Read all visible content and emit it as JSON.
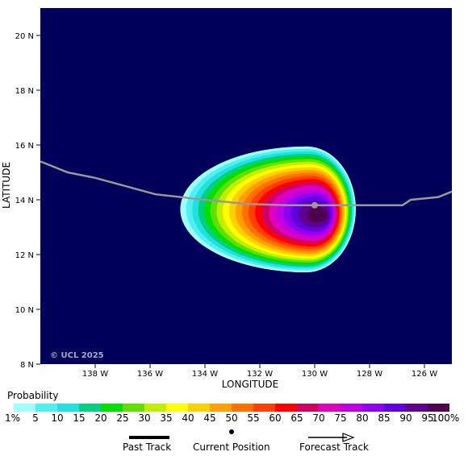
{
  "map": {
    "copyright": "© UCL 2025",
    "x_axis_title": "LONGITUDE",
    "y_axis_title": "LATITUDE",
    "lat_range": [
      8,
      21
    ],
    "lon_range": [
      -140,
      -125
    ],
    "lat_ticks": [
      {
        "value": 20,
        "label": "20 N"
      },
      {
        "value": 18,
        "label": "18 N"
      },
      {
        "value": 16,
        "label": "16 N"
      },
      {
        "value": 14,
        "label": "14 N"
      },
      {
        "value": 12,
        "label": "12 N"
      },
      {
        "value": 10,
        "label": "10 N"
      },
      {
        "value": 8,
        "label": "8 N"
      }
    ],
    "lon_ticks": [
      {
        "value": -138,
        "label": "138 W"
      },
      {
        "value": -136,
        "label": "136 W"
      },
      {
        "value": -134,
        "label": "134 W"
      },
      {
        "value": -132,
        "label": "132 W"
      },
      {
        "value": -130,
        "label": "130 W"
      },
      {
        "value": -128,
        "label": "128 W"
      },
      {
        "value": -126,
        "label": "126 W"
      }
    ],
    "background_color": "#00005a",
    "track_color": "#999999",
    "track": [
      {
        "lon": -125,
        "lat": 14.3
      },
      {
        "lon": -125.5,
        "lat": 14.1
      },
      {
        "lon": -126.5,
        "lat": 14.0
      },
      {
        "lon": -126.8,
        "lat": 13.8
      },
      {
        "lon": -128.0,
        "lat": 13.8
      },
      {
        "lon": -129.0,
        "lat": 13.8
      },
      {
        "lon": -130.0,
        "lat": 13.8
      },
      {
        "lon": -131.0,
        "lat": 13.8
      },
      {
        "lon": -132.5,
        "lat": 13.85
      },
      {
        "lon": -134.0,
        "lat": 14.0
      },
      {
        "lon": -135.8,
        "lat": 14.2
      },
      {
        "lon": -138.0,
        "lat": 14.8
      },
      {
        "lon": -139.0,
        "lat": 15.0
      },
      {
        "lon": -140.0,
        "lat": 15.4
      }
    ],
    "current_position": {
      "lon": -130,
      "lat": 13.8
    },
    "probability_field": {
      "center": {
        "lon": -130.3,
        "lat": 13.65
      },
      "east_extent_deg": 1.8,
      "west_extent_deg": 4.6,
      "lat_extent_deg": 2.3,
      "peak_percent": 95
    }
  },
  "legend": {
    "title": "Probability",
    "colors": [
      "#a0ffff",
      "#50f0f0",
      "#20e0e0",
      "#00d080",
      "#00e000",
      "#60e000",
      "#c0f000",
      "#ffff00",
      "#ffd000",
      "#ffa000",
      "#ff7000",
      "#ff4000",
      "#ff0000",
      "#d00060",
      "#e000c0",
      "#c000e0",
      "#9000f0",
      "#6000e0",
      "#600090",
      "#500050"
    ],
    "labels": [
      "1%",
      "5",
      "10",
      "15",
      "20",
      "25",
      "30",
      "35",
      "40",
      "45",
      "50",
      "55",
      "60",
      "65",
      "70",
      "75",
      "80",
      "85",
      "90",
      "95",
      "100%"
    ],
    "past_track": "Past Track",
    "current_position": "Current Position",
    "forecast_track": "Forecast Track"
  }
}
